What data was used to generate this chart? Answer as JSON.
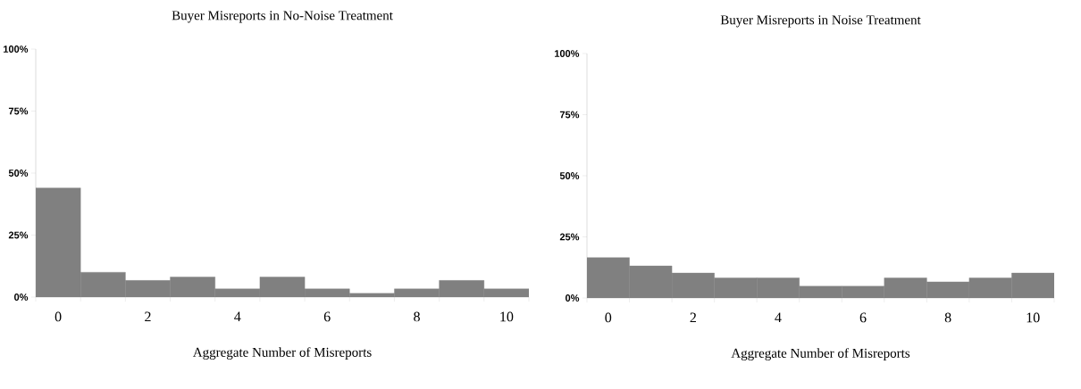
{
  "chart_data": [
    {
      "type": "bar",
      "title": "Buyer Misreports in No-Noise Treatment",
      "xlabel": "Aggregate Number of  Misreports",
      "color": "#808080",
      "categories": [
        "0",
        null,
        "2",
        null,
        "4",
        null,
        "6",
        null,
        "8",
        null,
        "10"
      ],
      "values": [
        44,
        10,
        6.7,
        8.1,
        3.3,
        8.1,
        3.3,
        1.5,
        3.3,
        6.7,
        3.3
      ],
      "ylim": [
        0,
        100
      ],
      "yticks": [
        {
          "value": 0,
          "label": "0%"
        },
        {
          "value": 25,
          "label": "25%"
        },
        {
          "value": 50,
          "label": "50%"
        },
        {
          "value": 75,
          "label": "75%"
        },
        {
          "value": 100,
          "label": "100%"
        }
      ],
      "grid": false
    },
    {
      "type": "bar",
      "title": "Buyer Misreports in Noise Treatment",
      "xlabel": "Aggregate Number of  Misreports",
      "color": "#808080",
      "categories": [
        "0",
        null,
        "2",
        null,
        "4",
        null,
        "6",
        null,
        "8",
        null,
        "10"
      ],
      "values": [
        16.5,
        13.1,
        10.2,
        8.2,
        8.2,
        4.8,
        4.8,
        8.2,
        6.6,
        8.2,
        10.2
      ],
      "ylim": [
        0,
        100
      ],
      "yticks": [
        {
          "value": 0,
          "label": "0%"
        },
        {
          "value": 25,
          "label": "25%"
        },
        {
          "value": 50,
          "label": "50%"
        },
        {
          "value": 75,
          "label": "75%"
        },
        {
          "value": 100,
          "label": "100%"
        }
      ],
      "grid": false
    }
  ]
}
